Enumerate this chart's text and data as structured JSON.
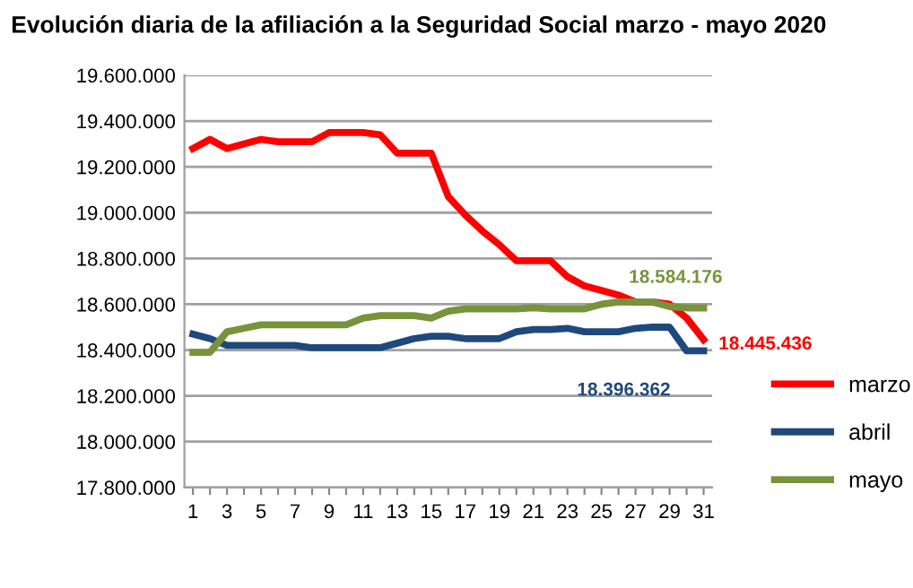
{
  "chart_data": {
    "type": "line",
    "title": "Evolución diaria de la afiliación a la Seguridad Social marzo - mayo 2020",
    "x": [
      1,
      2,
      3,
      4,
      5,
      6,
      7,
      8,
      9,
      10,
      11,
      12,
      13,
      14,
      15,
      16,
      17,
      18,
      19,
      20,
      21,
      22,
      23,
      24,
      25,
      26,
      27,
      28,
      29,
      30,
      31
    ],
    "series": [
      {
        "name": "marzo",
        "color": "#ff0000",
        "values": [
          19280000,
          19320000,
          19280000,
          19300000,
          19320000,
          19310000,
          19310000,
          19310000,
          19350000,
          19350000,
          19350000,
          19340000,
          19260000,
          19260000,
          19260000,
          19070000,
          18990000,
          18920000,
          18860000,
          18790000,
          18790000,
          18790000,
          18720000,
          18680000,
          18660000,
          18640000,
          18610000,
          18610000,
          18600000,
          18540000,
          18445436
        ],
        "value_labels": [
          null,
          null,
          null,
          null,
          null,
          null,
          null,
          null,
          null,
          null,
          null,
          null,
          null,
          null,
          null,
          null,
          null,
          null,
          null,
          null,
          null,
          null,
          null,
          null,
          null,
          null,
          null,
          null,
          null,
          null,
          "18.445.436"
        ]
      },
      {
        "name": "abril",
        "color": "#1f497d",
        "values": [
          18470000,
          18450000,
          18420000,
          18420000,
          18420000,
          18420000,
          18420000,
          18410000,
          18410000,
          18410000,
          18410000,
          18410000,
          18430000,
          18450000,
          18460000,
          18460000,
          18450000,
          18450000,
          18450000,
          18480000,
          18490000,
          18490000,
          18495000,
          18480000,
          18480000,
          18480000,
          18495000,
          18500000,
          18500000,
          18396362,
          18396362
        ],
        "value_labels": [
          null,
          null,
          null,
          null,
          null,
          null,
          null,
          null,
          null,
          null,
          null,
          null,
          null,
          null,
          null,
          null,
          null,
          null,
          null,
          null,
          null,
          null,
          null,
          null,
          null,
          null,
          null,
          null,
          null,
          "18.396.362",
          null
        ]
      },
      {
        "name": "mayo",
        "color": "#77933c",
        "values": [
          18390000,
          18390000,
          18480000,
          18495000,
          18510000,
          18510000,
          18510000,
          18510000,
          18510000,
          18510000,
          18540000,
          18550000,
          18550000,
          18550000,
          18540000,
          18570000,
          18580000,
          18580000,
          18580000,
          18580000,
          18585000,
          18580000,
          18580000,
          18580000,
          18600000,
          18610000,
          18610000,
          18610000,
          18590000,
          18584176,
          18584176
        ],
        "value_labels": [
          null,
          null,
          null,
          null,
          null,
          null,
          null,
          null,
          null,
          null,
          null,
          null,
          null,
          null,
          null,
          null,
          null,
          null,
          null,
          null,
          null,
          null,
          null,
          null,
          null,
          null,
          null,
          null,
          null,
          null,
          "18.584.176"
        ]
      }
    ],
    "xlim": [
      0.5,
      31.5
    ],
    "xticks": [
      1,
      {
        "value": 2,
        "label": null
      },
      3,
      {
        "value": 4,
        "label": null
      },
      5,
      {
        "value": 6,
        "label": null
      },
      7,
      {
        "value": 8,
        "label": null
      },
      9,
      {
        "value": 10,
        "label": null
      },
      11,
      {
        "value": 12,
        "label": null
      },
      13,
      {
        "value": 14,
        "label": null
      },
      15,
      {
        "value": 16,
        "label": null
      },
      17,
      {
        "value": 18,
        "label": null
      },
      19,
      {
        "value": 20,
        "label": null
      },
      21,
      {
        "value": 22,
        "label": null
      },
      23,
      {
        "value": 24,
        "label": null
      },
      25,
      {
        "value": 26,
        "label": null
      },
      27,
      {
        "value": 28,
        "label": null
      },
      29,
      {
        "value": 30,
        "label": null
      },
      31
    ],
    "ylim": [
      17800000,
      19600000
    ],
    "yticks": [
      {
        "value": 17800000,
        "label": "17.800.000"
      },
      {
        "value": 18000000,
        "label": "18.000.000"
      },
      {
        "value": 18200000,
        "label": "18.200.000"
      },
      {
        "value": 18400000,
        "label": "18.400.000"
      },
      {
        "value": 18600000,
        "label": "18.600.000"
      },
      {
        "value": 18800000,
        "label": "18.800.000"
      },
      {
        "value": 19000000,
        "label": "19.000.000"
      },
      {
        "value": 19200000,
        "label": "19.200.000"
      },
      {
        "value": 19400000,
        "label": "19.400.000"
      },
      {
        "value": 19600000,
        "label": "19.600.000"
      }
    ],
    "grid": "y",
    "legend": "right",
    "marker": "none",
    "line_style": "solid"
  }
}
